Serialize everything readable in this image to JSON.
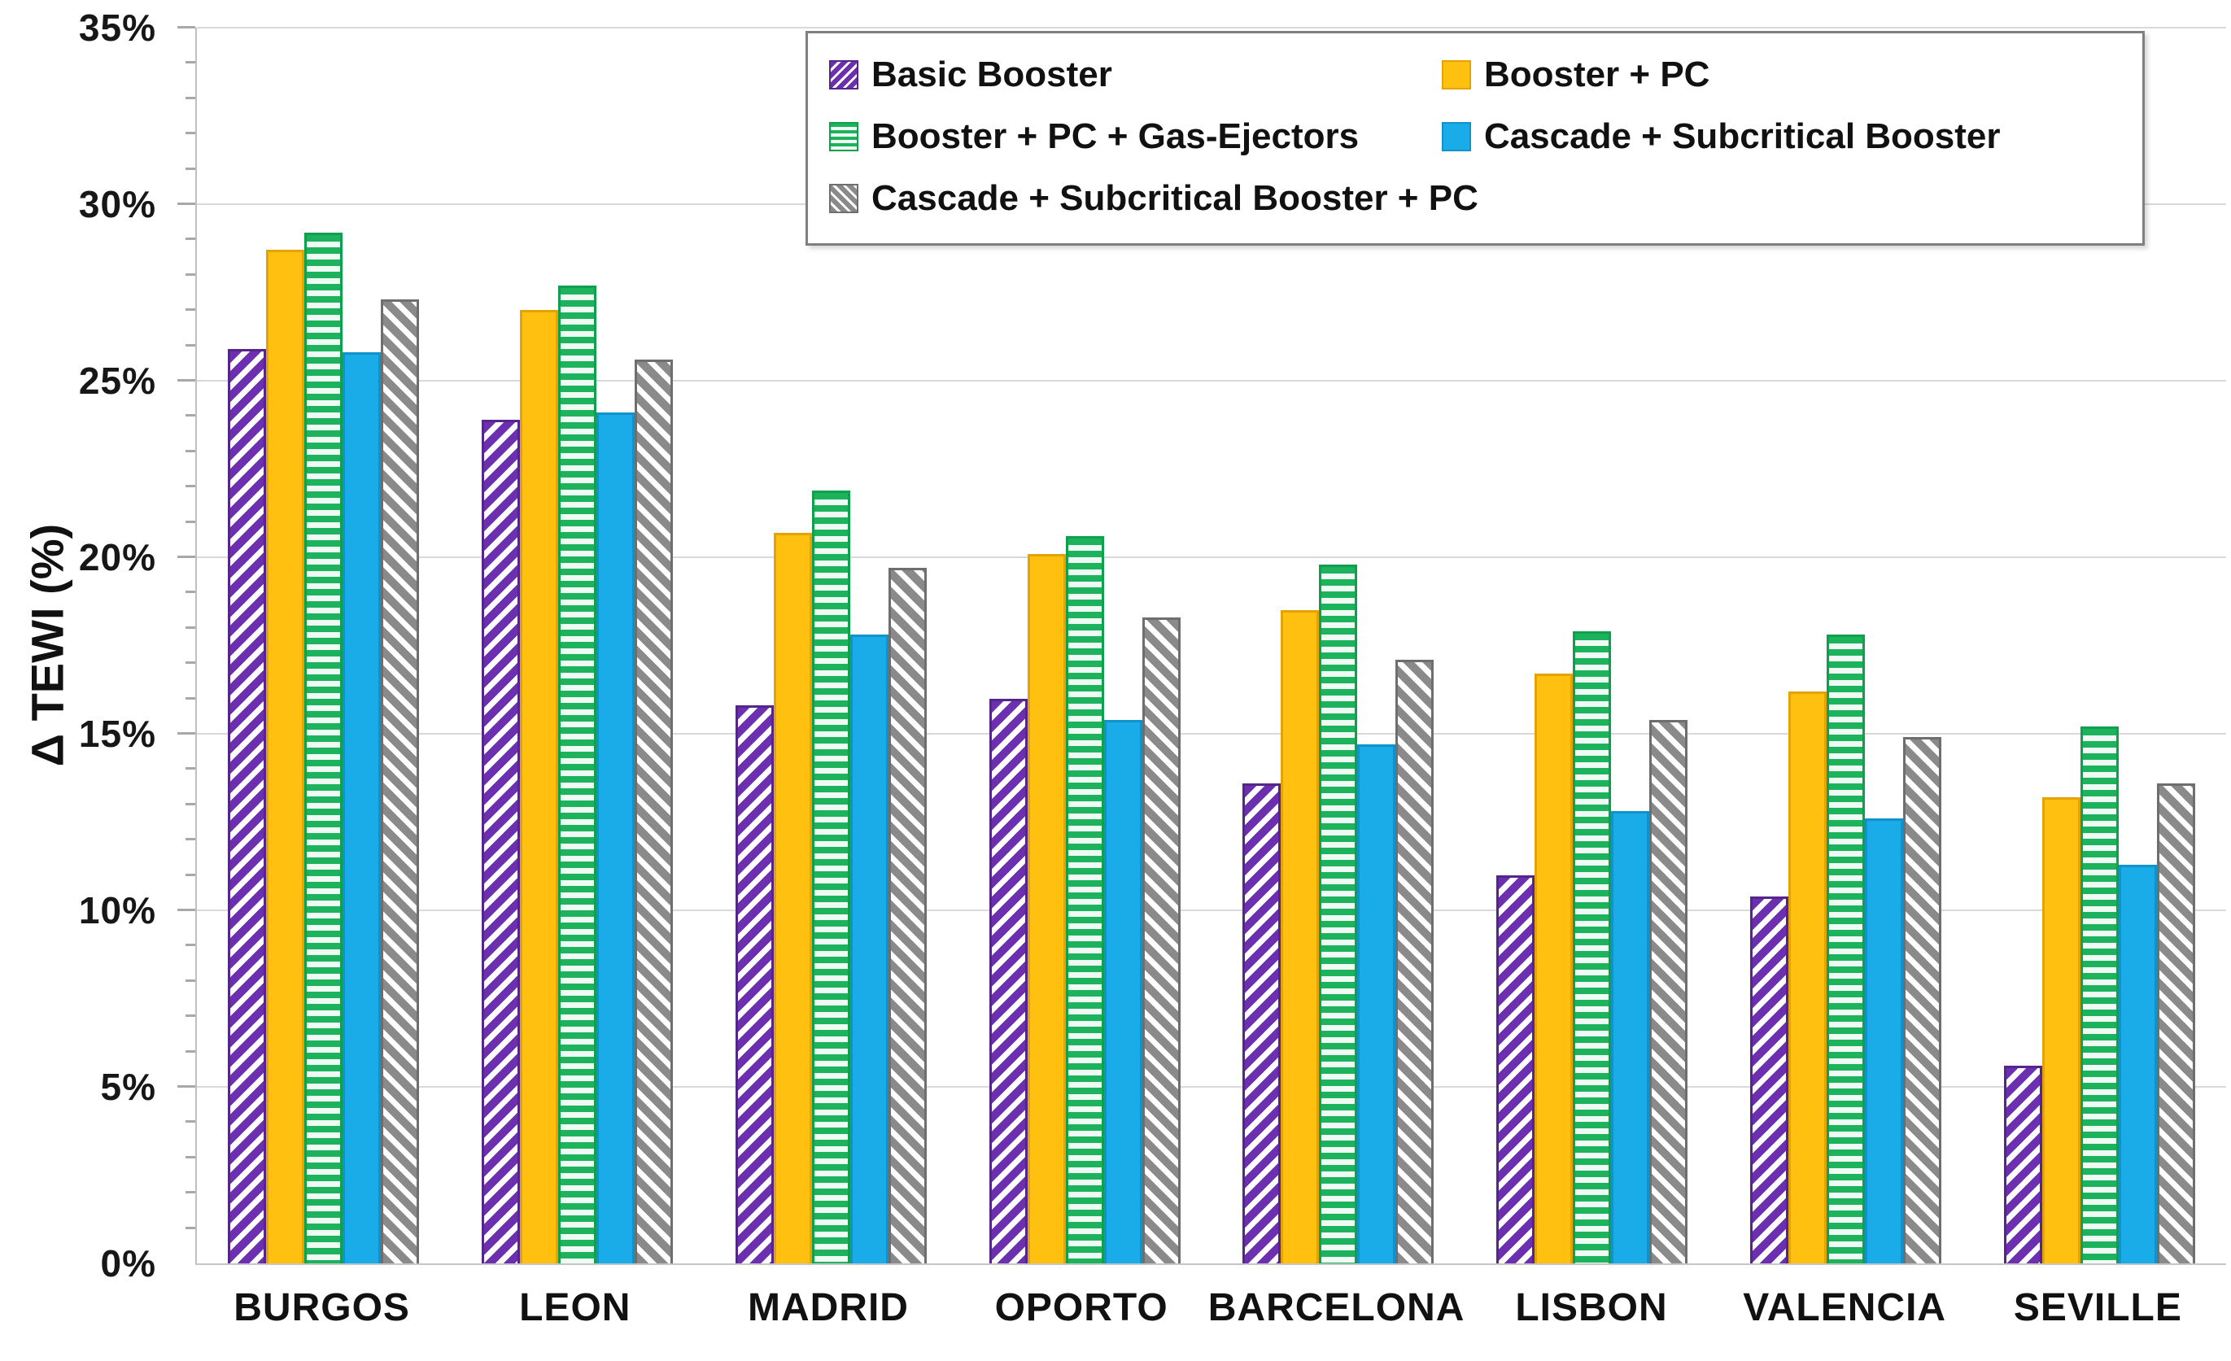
{
  "chart_data": {
    "type": "bar",
    "title": "",
    "ylabel": "Δ TEWI (%)",
    "xlabel": "",
    "ylim": [
      0,
      35
    ],
    "y_major_step": 5,
    "y_minor_step": 1,
    "y_ticks": [
      "0%",
      "5%",
      "10%",
      "15%",
      "20%",
      "25%",
      "30%",
      "35%"
    ],
    "grid": "major-horizontal",
    "legend_position": "top-center",
    "categories": [
      "BURGOS",
      "LEON",
      "MADRID",
      "OPORTO",
      "BARCELONA",
      "LISBON",
      "VALENCIA",
      "SEVILLE"
    ],
    "series": [
      {
        "name": "Basic Booster",
        "pattern": "diagonal-up",
        "color": "#6B2FAF",
        "border": "#55258C",
        "values": [
          25.9,
          23.9,
          15.8,
          16.0,
          13.6,
          11.0,
          10.4,
          5.6
        ]
      },
      {
        "name": "Booster + PC",
        "pattern": "solid",
        "color": "#FFC010",
        "border": "#E5A300",
        "values": [
          28.7,
          27.0,
          20.7,
          20.1,
          18.5,
          16.7,
          16.2,
          13.2
        ]
      },
      {
        "name": "Booster + PC + Gas-Ejectors",
        "pattern": "horizontal-stripes",
        "color": "#1CB35C",
        "border": "#0FA04E",
        "values": [
          29.2,
          27.7,
          21.9,
          20.6,
          19.8,
          17.9,
          17.8,
          15.2
        ]
      },
      {
        "name": "Cascade + Subcritical Booster",
        "pattern": "solid",
        "color": "#19ACE8",
        "border": "#0E93CC",
        "values": [
          25.8,
          24.1,
          17.8,
          15.4,
          14.7,
          12.8,
          12.6,
          11.3
        ]
      },
      {
        "name": "Cascade + Subcritical Booster + PC",
        "pattern": "diagonal-down",
        "color": "#8A8A8A",
        "border": "#6E6E6E",
        "values": [
          27.3,
          25.6,
          19.7,
          18.3,
          17.1,
          15.4,
          14.9,
          13.6
        ]
      }
    ],
    "stripe_gap_color": "#FFFFFF",
    "green_gap_color": "#F0FAF4",
    "gridline_color": "#D9D9D9",
    "axis_line_color": "#BFBFBF"
  }
}
